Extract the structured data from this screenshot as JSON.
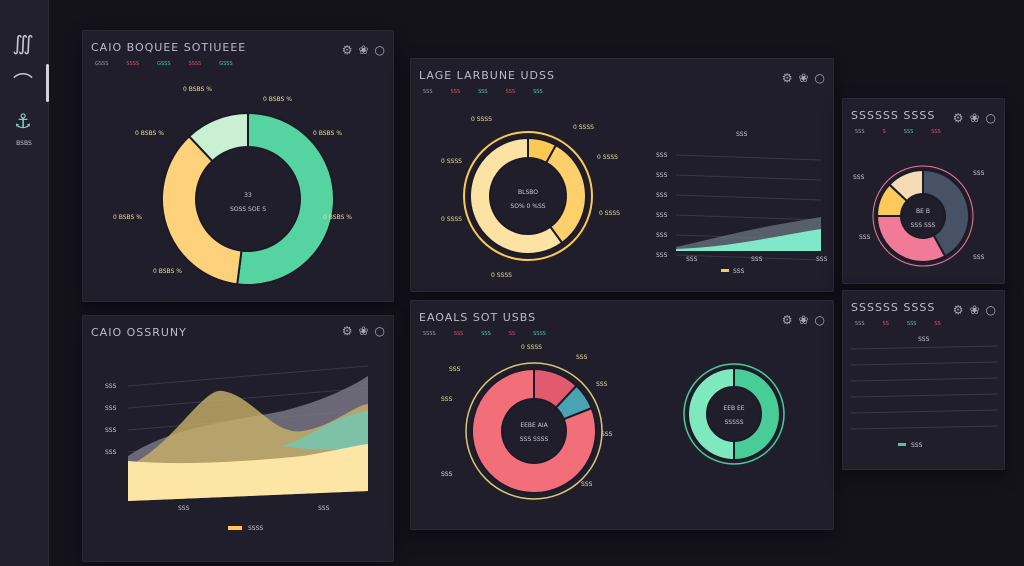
{
  "sidebar": {
    "items": [
      {
        "icon": "knot-icon"
      },
      {
        "icon": "curve-icon"
      },
      {
        "icon": "anchor-icon",
        "label": "BSBS"
      }
    ]
  },
  "panels": [
    {
      "title": "CAIO BOQUEE  SOTIUEEE",
      "legend": [
        "GSSS",
        "SSSS",
        "GSSS",
        "SSSS",
        "GSSS"
      ],
      "center": "33",
      "center_sub": "SOSS SOE S",
      "donut": {
        "values": [
          0.52,
          0.36,
          0.12
        ],
        "colors": [
          "#55d3a0",
          "#fdd27a",
          "#c9f0d2"
        ]
      },
      "labels": [
        "0 BSBS %",
        "0 BSBS %",
        "0 BSBS %",
        "0 BSBS %",
        "0 BSBS %",
        "0 BSBS %",
        "0 BSBS %"
      ]
    },
    {
      "title": "LAGE LARBUNE  UDSS",
      "legend": [
        "SSS",
        "SSS",
        "SSS",
        "SSS",
        "SSS"
      ],
      "center": "BLSBO",
      "center_sub": "SO% 0 %SS",
      "donut": {
        "values": [
          0.08,
          0.32,
          0.6
        ],
        "colors": [
          "#fcca52",
          "#fdd06c",
          "#fde3a3"
        ]
      },
      "labels": [
        "0 SSSS",
        "0 SSSS",
        "0 SSSS",
        "0 SSSS",
        "0 SSSS",
        "0 SSSS",
        "0 SSSS"
      ],
      "line_label": "SSS",
      "y_ticks": [
        "SSS",
        "SSS",
        "SSS",
        "SSS",
        "SSS",
        "SSS"
      ],
      "x_ticks": [
        "SSS",
        "SSS",
        "SSS"
      ],
      "legend2": "SSS"
    },
    {
      "title": "SSSSSS SSSS",
      "legend": [
        "SSS",
        "S",
        "SSS",
        "SSS"
      ],
      "center": "BE B",
      "center_sub": "SSS SSS",
      "donut": {
        "values": [
          0.42,
          0.33,
          0.12,
          0.13
        ],
        "colors": [
          "#475266",
          "#f07a98",
          "#fcc95a",
          "#f6dcb4"
        ]
      },
      "labels": [
        "SSS",
        "SSS",
        "SSS",
        "SSS"
      ]
    },
    {
      "title": "CAIO OSSRUNY",
      "y_ticks": [
        "SSS",
        "SSS",
        "SSS",
        "SSS"
      ],
      "x_ticks": [
        "SSS",
        "SSS"
      ],
      "legend2": "SSSS",
      "colors": [
        "#fde5a6",
        "#c9b26a",
        "#6fc8b8",
        "#7d7a89"
      ]
    },
    {
      "title": "EAOALS  SOT USBS",
      "legend": [
        "SSSS",
        "SSS",
        "SSS",
        "SS",
        "SSSS"
      ],
      "center": "EEBE AIA",
      "center_sub": "SSS SSSS",
      "donut": {
        "values": [
          0.12,
          0.07,
          0.81
        ],
        "colors": [
          "#e25a6e",
          "#4aa3b2",
          "#f26f7a"
        ]
      },
      "center2": "EEB EE",
      "center2_sub": "SSSSS",
      "donut2": {
        "values": [
          0.5,
          0.5
        ],
        "colors": [
          "#48cc98",
          "#7ee8bf"
        ]
      },
      "labels": [
        "0 SSSS",
        "SSS",
        "SSS",
        "SSS",
        "SSS",
        "SSS",
        "SSS",
        "SSS"
      ]
    },
    {
      "title": "SSSSSS SSSS",
      "legend": [
        "SSS",
        "SS",
        "SSS",
        "SS"
      ],
      "line_label": "SSS",
      "legend2": "SSS"
    }
  ]
}
